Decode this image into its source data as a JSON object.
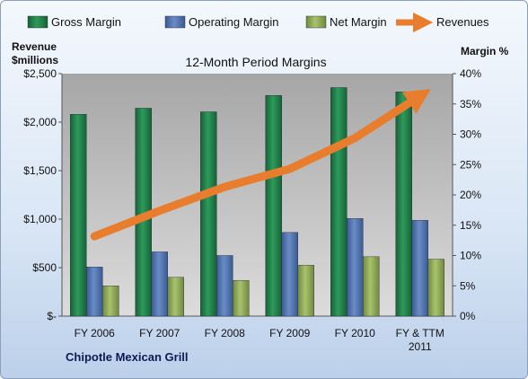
{
  "chart_data": {
    "type": "bar",
    "title": "12-Month Period Margins",
    "company": "Chipotle Mexican Grill",
    "categories": [
      [
        "FY 2006"
      ],
      [
        "FY 2007"
      ],
      [
        "FY 2008"
      ],
      [
        "FY 2009"
      ],
      [
        "FY 2010"
      ],
      [
        "FY & TTM",
        "2011"
      ]
    ],
    "left_axis": {
      "title_lines": [
        "Revenue",
        "$millions"
      ],
      "ylim": [
        0,
        2500
      ],
      "ticks": [
        0,
        500,
        1000,
        1500,
        2000,
        2500
      ],
      "tick_labels": [
        "$-",
        "$500",
        "$1,000",
        "$1,500",
        "$2,000",
        "$2,500"
      ]
    },
    "right_axis": {
      "title": "Margin %",
      "ylim": [
        0,
        40
      ],
      "ticks": [
        0,
        5,
        10,
        15,
        20,
        25,
        30,
        35,
        40
      ],
      "tick_labels": [
        "0%",
        "5%",
        "10%",
        "15%",
        "20%",
        "25%",
        "30%",
        "35%",
        "40%"
      ]
    },
    "series": [
      {
        "name": "Gross Margin",
        "kind": "bar",
        "axis": "right",
        "color": "#1f7a45",
        "values": [
          33.3,
          34.3,
          33.7,
          36.4,
          37.7,
          37.0
        ]
      },
      {
        "name": "Operating Margin",
        "kind": "bar",
        "axis": "right",
        "color": "#4f6fa8",
        "values": [
          8.1,
          10.6,
          10.0,
          13.8,
          16.1,
          15.8
        ]
      },
      {
        "name": "Net Margin",
        "kind": "bar",
        "axis": "right",
        "color": "#8fa85a",
        "values": [
          5.0,
          6.4,
          5.9,
          8.4,
          9.8,
          9.4
        ]
      },
      {
        "name": "Revenues",
        "kind": "line-arrow",
        "axis": "left",
        "color": "#e87e2d",
        "values": [
          823,
          1086,
          1332,
          1518,
          1836,
          2270
        ]
      }
    ],
    "legend_position": "top",
    "grid": false
  }
}
